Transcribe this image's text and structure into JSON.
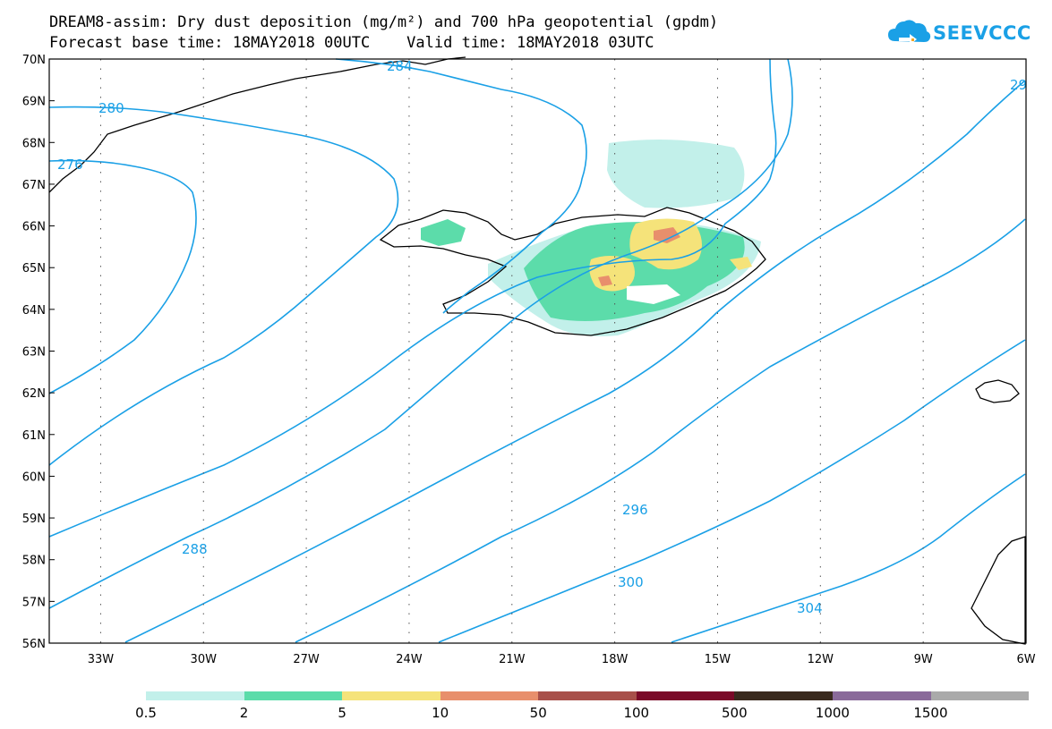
{
  "title": {
    "line1": "DREAM8-assim: Dry dust deposition (mg/m²) and 700 hPa geopotential (gpdm)",
    "line2": "Forecast base time: 18MAY2018 00UTC    Valid time: 18MAY2018 03UTC"
  },
  "logo": {
    "text": "SEEVCCC",
    "icon": "cloud-logo-icon",
    "color": "#1aa0e6"
  },
  "map": {
    "lat_range": [
      56,
      70
    ],
    "lon_range": [
      -34.5,
      -6
    ],
    "lat_ticks": [
      "70N",
      "69N",
      "68N",
      "67N",
      "66N",
      "65N",
      "64N",
      "63N",
      "62N",
      "61N",
      "60N",
      "59N",
      "58N",
      "57N",
      "56N"
    ],
    "lon_ticks": [
      "33W",
      "30W",
      "27W",
      "24W",
      "21W",
      "18W",
      "15W",
      "12W",
      "9W",
      "6W"
    ],
    "contour_color": "#1aa0e6",
    "contour_labels": [
      "284",
      "280",
      "276",
      "288",
      "296",
      "300",
      "304",
      "29"
    ]
  },
  "legend": {
    "colors": [
      "#c2f0ea",
      "#5cdcaa",
      "#f5e37a",
      "#e88f6c",
      "#a8504a",
      "#7a0a28",
      "#3a2a1e",
      "#8a6a9a",
      "#aaaaaa"
    ],
    "labels": [
      "0.5",
      "2",
      "5",
      "10",
      "50",
      "100",
      "500",
      "1000",
      "1500"
    ]
  }
}
